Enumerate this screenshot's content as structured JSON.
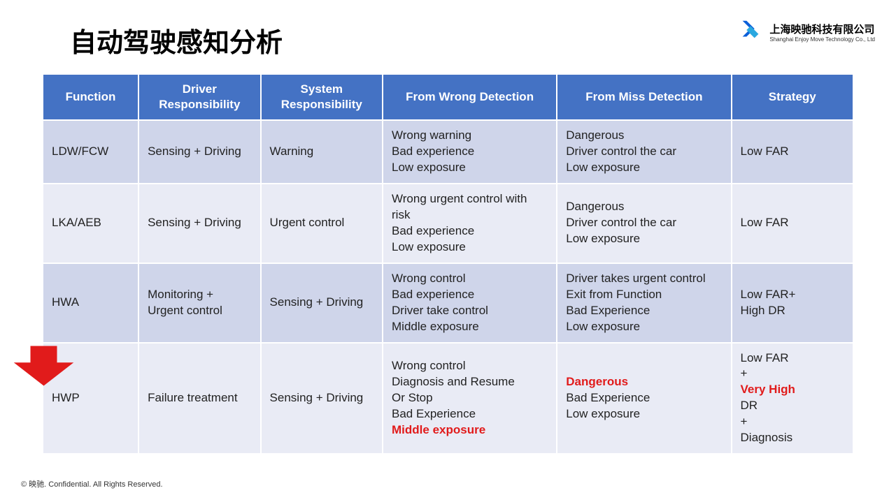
{
  "title": "自动驾驶感知分析",
  "logo": {
    "cn": "上海映驰科技有限公司",
    "en": "Shanghai Enjoy Move Technology Co., Ltd",
    "color_primary": "#0b5fd9",
    "color_accent": "#2aa8e0"
  },
  "colors": {
    "header_bg": "#4472c4",
    "row_odd": "#cfd5ea",
    "row_even": "#e9ebf5",
    "emphasis": "#e11b1b",
    "arrow_fill": "#e11b1b"
  },
  "table": {
    "columns": [
      "Function",
      "Driver Responsibility",
      "System Responsibility",
      "From Wrong Detection",
      "From Miss Detection",
      "Strategy"
    ],
    "rows": [
      {
        "function": "LDW/FCW",
        "driver": "Sensing + Driving",
        "system": "Warning",
        "wrong": [
          {
            "t": "Wrong warning"
          },
          {
            "t": "Bad experience"
          },
          {
            "t": "Low exposure"
          }
        ],
        "miss": [
          {
            "t": "Dangerous"
          },
          {
            "t": "Driver control the car"
          },
          {
            "t": "Low exposure"
          }
        ],
        "strategy": [
          {
            "t": "Low FAR"
          }
        ]
      },
      {
        "function": "LKA/AEB",
        "driver": "Sensing + Driving",
        "system": "Urgent control",
        "wrong": [
          {
            "t": "Wrong urgent control with risk"
          },
          {
            "t": "Bad experience"
          },
          {
            "t": "Low exposure"
          }
        ],
        "miss": [
          {
            "t": "Dangerous"
          },
          {
            "t": "Driver control the car"
          },
          {
            "t": "Low exposure"
          }
        ],
        "strategy": [
          {
            "t": "Low FAR"
          }
        ]
      },
      {
        "function": "HWA",
        "driver": "Monitoring + Urgent control",
        "system": "Sensing + Driving",
        "wrong": [
          {
            "t": "Wrong control"
          },
          {
            "t": "Bad experience"
          },
          {
            "t": "Driver take control"
          },
          {
            "t": "Middle exposure"
          }
        ],
        "miss": [
          {
            "t": "Driver takes urgent control"
          },
          {
            "t": "Exit from Function"
          },
          {
            "t": "Bad Experience"
          },
          {
            "t": "Low exposure"
          }
        ],
        "strategy": [
          {
            "t": "Low FAR+"
          },
          {
            "t": "High DR"
          }
        ]
      },
      {
        "function": "HWP",
        "driver": "Failure treatment",
        "system": "Sensing + Driving",
        "wrong": [
          {
            "t": "Wrong control"
          },
          {
            "t": "Diagnosis and Resume"
          },
          {
            "t": "Or Stop"
          },
          {
            "t": "Bad Experience"
          },
          {
            "t": "Middle exposure",
            "red": true
          }
        ],
        "miss": [
          {
            "t": "Dangerous",
            "red": true
          },
          {
            "t": "Bad Experience"
          },
          {
            "t": "Low exposure"
          }
        ],
        "strategy": [
          {
            "t": "Low FAR"
          },
          {
            "t": "+"
          },
          {
            "t_parts": [
              {
                "t": "Very High",
                "red": true
              },
              {
                "t": " DR"
              }
            ]
          },
          {
            "t": "+"
          },
          {
            "t": "Diagnosis"
          }
        ]
      }
    ]
  },
  "footer": "© 映驰. Confidential. All Rights Reserved."
}
